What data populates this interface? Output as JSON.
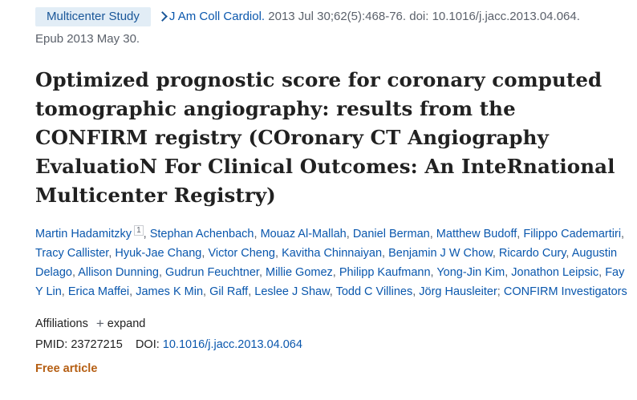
{
  "citation": {
    "publication_type": "Multicenter Study",
    "journal": "J Am Coll Cardiol.",
    "details": "2013 Jul 30;62(5):468-76. doi: 10.1016/j.jacc.2013.04.064.",
    "epub": "Epub 2013 May 30."
  },
  "article": {
    "title": "Optimized prognostic score for coronary computed tomographic angiography: results from the CONFIRM registry (COronary CT Angiography EvaluatioN For Clinical Outcomes: An InteRnational Multicenter Registry)"
  },
  "authors": [
    {
      "name": "Martin Hadamitzky",
      "affiliation": "1"
    },
    {
      "name": "Stephan Achenbach"
    },
    {
      "name": "Mouaz Al-Mallah"
    },
    {
      "name": "Daniel Berman"
    },
    {
      "name": "Matthew Budoff"
    },
    {
      "name": "Filippo Cademartiri"
    },
    {
      "name": "Tracy Callister"
    },
    {
      "name": "Hyuk-Jae Chang"
    },
    {
      "name": "Victor Cheng"
    },
    {
      "name": "Kavitha Chinnaiyan"
    },
    {
      "name": "Benjamin J W Chow"
    },
    {
      "name": "Ricardo Cury"
    },
    {
      "name": "Augustin Delago"
    },
    {
      "name": "Allison Dunning"
    },
    {
      "name": "Gudrun Feuchtner"
    },
    {
      "name": "Millie Gomez"
    },
    {
      "name": "Philipp Kaufmann"
    },
    {
      "name": "Yong-Jin Kim"
    },
    {
      "name": "Jonathon Leipsic"
    },
    {
      "name": "Fay Y Lin"
    },
    {
      "name": "Erica Maffei"
    },
    {
      "name": "James K Min"
    },
    {
      "name": "Gil Raff"
    },
    {
      "name": "Leslee J Shaw"
    },
    {
      "name": "Todd C Villines"
    },
    {
      "name": "Jörg Hausleiter"
    },
    {
      "name": "CONFIRM Investigators",
      "separator": "; "
    }
  ],
  "meta": {
    "affiliations_label": "Affiliations",
    "expand_plus": "+",
    "expand_label": "expand",
    "pmid_label": "PMID:",
    "pmid": "23727215",
    "doi_label": "DOI:",
    "doi": "10.1016/j.jacc.2013.04.064",
    "free_article": "Free article"
  }
}
